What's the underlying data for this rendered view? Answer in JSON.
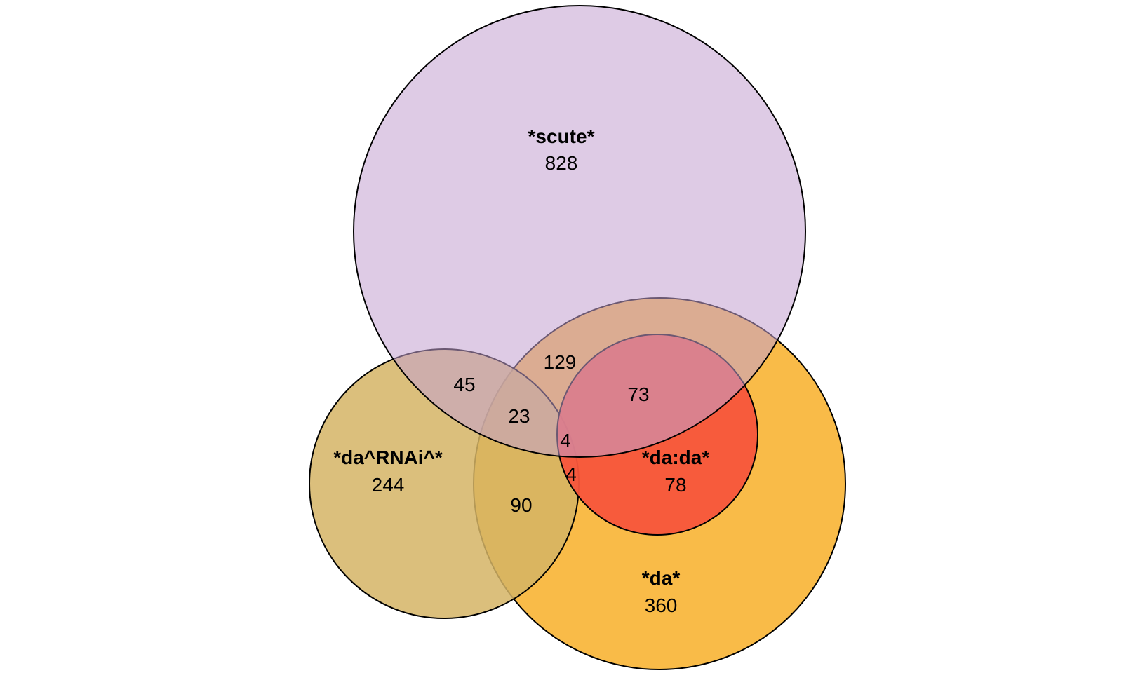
{
  "diagram": {
    "type": "venn",
    "sets": [
      {
        "id": "scute",
        "label": "*scute*",
        "count": "828",
        "color": "#C3A0CF"
      },
      {
        "id": "da_rnai",
        "label": "*da^RNAi^*",
        "count": "244",
        "color": "#D5B465"
      },
      {
        "id": "da",
        "label": "*da*",
        "count": "360",
        "color": "#F9B73E"
      },
      {
        "id": "da_da",
        "label": "*da:da*",
        "count": "78",
        "color": "#F7553C"
      }
    ],
    "intersections": [
      {
        "id": "scute_da_rnai",
        "sets": [
          "scute",
          "da_rnai"
        ],
        "count": "45"
      },
      {
        "id": "scute_da",
        "sets": [
          "scute",
          "da"
        ],
        "count": "129"
      },
      {
        "id": "scute_da_da",
        "sets": [
          "scute",
          "da",
          "da_da"
        ],
        "count": "73"
      },
      {
        "id": "scute_da_rnai_da",
        "sets": [
          "scute",
          "da_rnai",
          "da"
        ],
        "count": "23"
      },
      {
        "id": "all_four",
        "sets": [
          "scute",
          "da_rnai",
          "da",
          "da_da"
        ],
        "count": "4"
      },
      {
        "id": "da_rnai_da_da",
        "sets": [
          "da_rnai",
          "da",
          "da_da"
        ],
        "count": "4"
      },
      {
        "id": "da_rnai_da",
        "sets": [
          "da_rnai",
          "da"
        ],
        "count": "90"
      }
    ]
  }
}
